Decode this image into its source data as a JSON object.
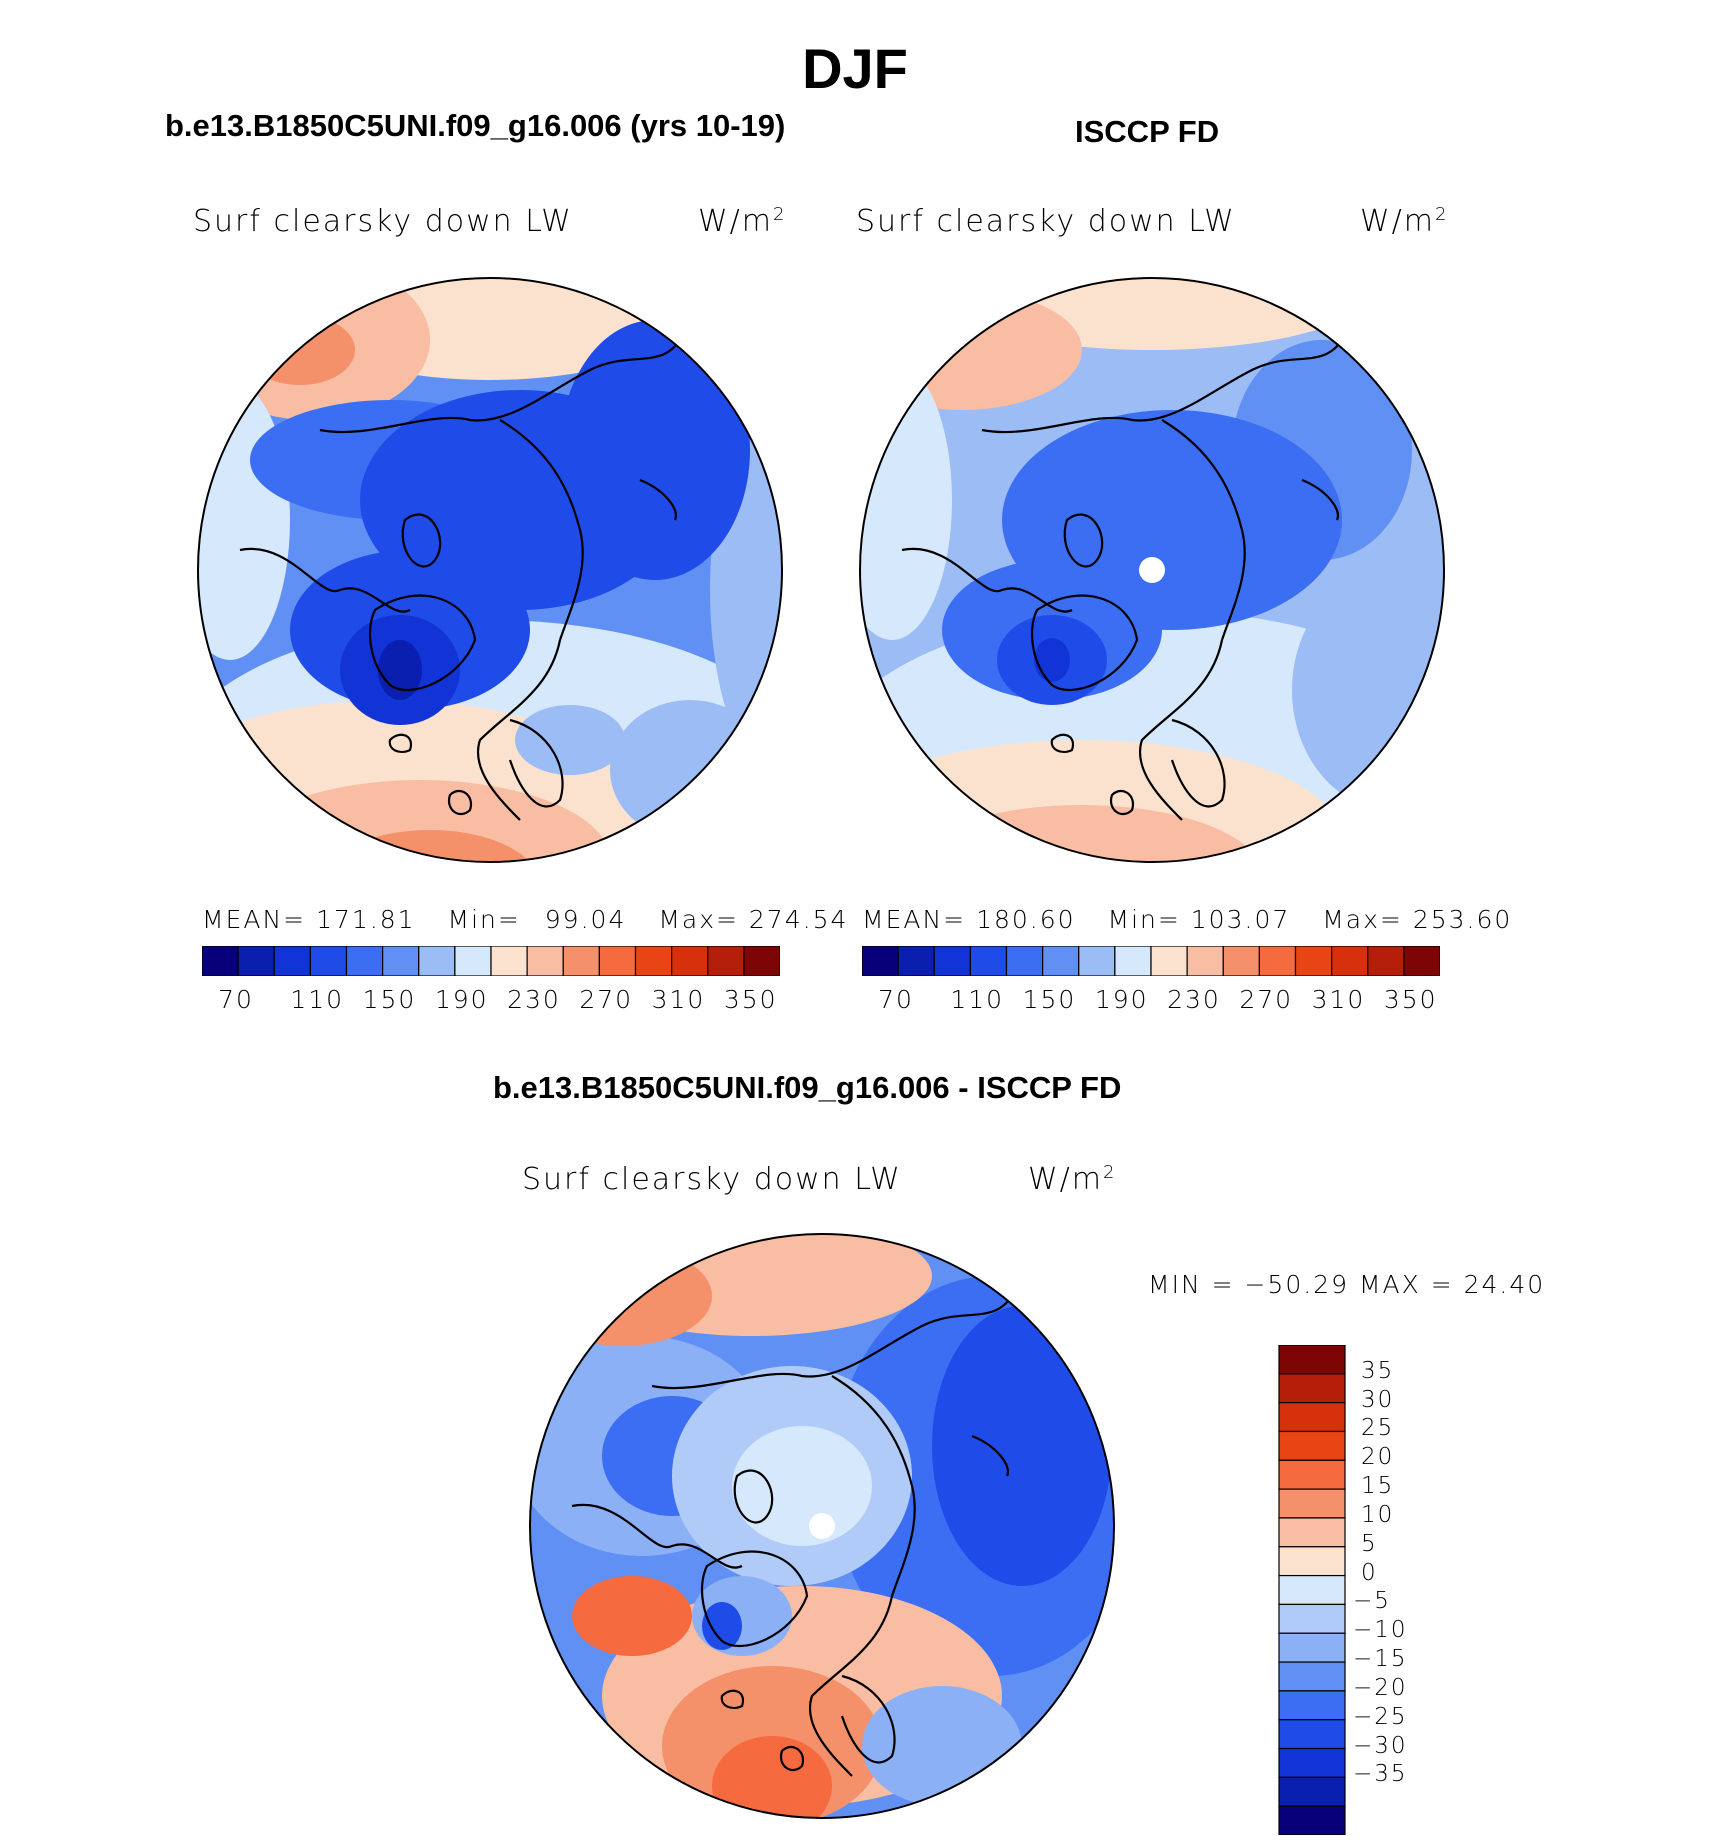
{
  "title": "DJF",
  "colors": {
    "abs": [
      "#08007a",
      "#0a1fb0",
      "#1234d6",
      "#1f4be8",
      "#3b6ef2",
      "#6090f3",
      "#9bbcf5",
      "#d6e8fb",
      "#fbe2cf",
      "#f8bda3",
      "#f5916a",
      "#f56a3e",
      "#e84414",
      "#d7300c",
      "#b51e08",
      "#7e0505"
    ],
    "diff": [
      "#7e0505",
      "#b51e08",
      "#d7300c",
      "#e84414",
      "#f56a3e",
      "#f5916a",
      "#f8bda3",
      "#fbe2cf",
      "#d6e8fb",
      "#b0cbf7",
      "#8cb0f5",
      "#6090f3",
      "#3b6ef2",
      "#1f4be8",
      "#1234d6",
      "#0a1fb0",
      "#08007a"
    ],
    "missing": "#ffffff",
    "coast": "#000000"
  },
  "panels": {
    "model": {
      "title": "b.e13.B1850C5UNI.f09_g16.006 (yrs 10-19)",
      "variable": "Surf clearsky down LW",
      "units_base": "W/m",
      "units_exp": "2",
      "mean_label": "MEAN=",
      "mean": "171.81",
      "min_label": "Min=",
      "min": "99.04",
      "max_label": "Max=",
      "max": "274.54",
      "ticks": [
        "70",
        "110",
        "150",
        "190",
        "230",
        "270",
        "310",
        "350"
      ]
    },
    "obs": {
      "title": "ISCCP FD",
      "variable": "Surf clearsky down LW",
      "units_base": "W/m",
      "units_exp": "2",
      "mean_label": "MEAN=",
      "mean": "180.60",
      "min_label": "Min=",
      "min": "103.07",
      "max_label": "Max=",
      "max": "253.60",
      "ticks": [
        "70",
        "110",
        "150",
        "190",
        "230",
        "270",
        "310",
        "350"
      ]
    },
    "diff": {
      "title": "b.e13.B1850C5UNI.f09_g16.006 - ISCCP FD",
      "variable": "Surf clearsky down LW",
      "units_base": "W/m",
      "units_exp": "2",
      "minmax": "MIN = −50.29 MAX =   24.40",
      "ticks": [
        "35",
        "30",
        "25",
        "20",
        "15",
        "10",
        "5",
        "0",
        "−5",
        "−10",
        "−15",
        "−20",
        "−25",
        "−30",
        "−35"
      ]
    }
  }
}
